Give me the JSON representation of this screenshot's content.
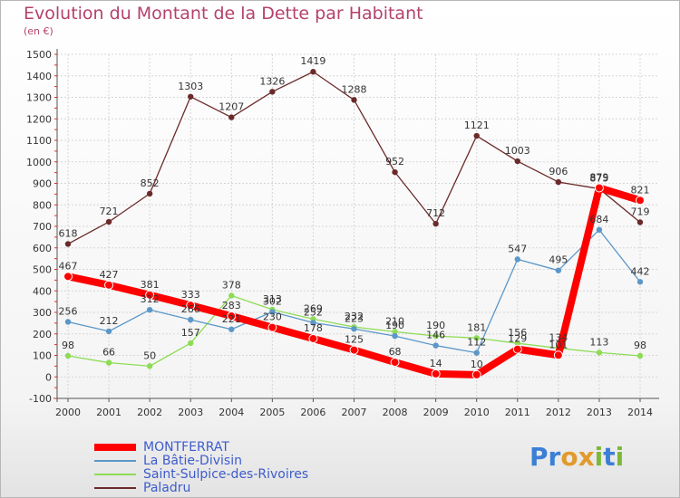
{
  "title": "Evolution du Montant de la Dette par Habitant",
  "unit_label": "(en €)",
  "logo_text": "Proxiti",
  "chart_data": {
    "type": "line",
    "title": "Evolution du Montant de la Dette par Habitant",
    "ylabel": "(en €)",
    "xlabel": "",
    "x": [
      "2000",
      "2001",
      "2002",
      "2003",
      "2004",
      "2005",
      "2006",
      "2007",
      "2008",
      "2009",
      "2010",
      "2011",
      "2012",
      "2013",
      "2014"
    ],
    "ylim": [
      -100,
      1500
    ],
    "yticks": [
      "-100",
      "0",
      "100",
      "200",
      "300",
      "400",
      "500",
      "600",
      "700",
      "800",
      "900",
      "1000",
      "1100",
      "1200",
      "1300",
      "1400",
      "1500"
    ],
    "grid": true,
    "legend": "bottom-left",
    "series": [
      {
        "name": "MONTFERRAT",
        "color": "#ff0000",
        "values": [
          467,
          427,
          381,
          333,
          283,
          230,
          178,
          125,
          68,
          14,
          10,
          129,
          101,
          879,
          821
        ]
      },
      {
        "name": "La Bâtie-Divisin",
        "color": "#5b97c8",
        "values": [
          256,
          212,
          312,
          266,
          221,
          302,
          252,
          223,
          190,
          146,
          112,
          547,
          495,
          684,
          442
        ]
      },
      {
        "name": "Saint-Sulpice-des-Rivoires",
        "color": "#8edc56",
        "values": [
          98,
          66,
          50,
          157,
          378,
          313,
          269,
          232,
          210,
          190,
          181,
          156,
          134,
          113,
          98
        ]
      },
      {
        "name": "Paladru",
        "color": "#6b2a2a",
        "values": [
          618,
          721,
          852,
          1303,
          1207,
          1326,
          1419,
          1288,
          952,
          712,
          1121,
          1003,
          906,
          875,
          719
        ]
      }
    ]
  }
}
